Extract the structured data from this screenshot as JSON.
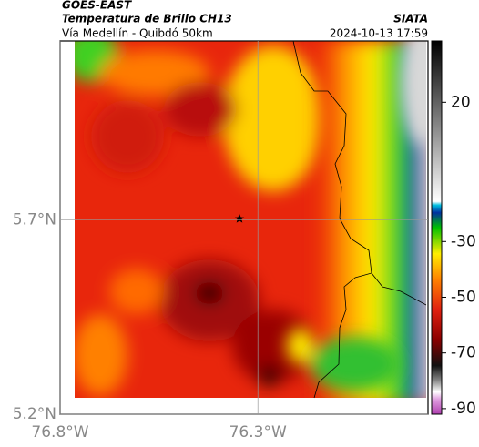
{
  "header": {
    "line1": "GOES-EAST",
    "title": "Temperatura de Brillo CH13",
    "source": "SIATA",
    "subtitle": "Vía Medellín - Quibdó 50km",
    "datetime": "2024-10-13 17:59"
  },
  "map": {
    "xlim": [
      -76.8,
      -75.87
    ],
    "ylim": [
      5.2,
      6.16
    ],
    "xticks": [
      {
        "value": -76.8,
        "label": "76.8°W"
      },
      {
        "value": -76.3,
        "label": "76.3°W"
      }
    ],
    "yticks": [
      {
        "value": 5.2,
        "label": "5.2°N"
      },
      {
        "value": 5.7,
        "label": "5.7°N"
      }
    ],
    "colorbar": {
      "lim": [
        -92,
        42
      ],
      "ticks": [
        20,
        -30,
        -50,
        -70,
        -90
      ]
    }
  }
}
